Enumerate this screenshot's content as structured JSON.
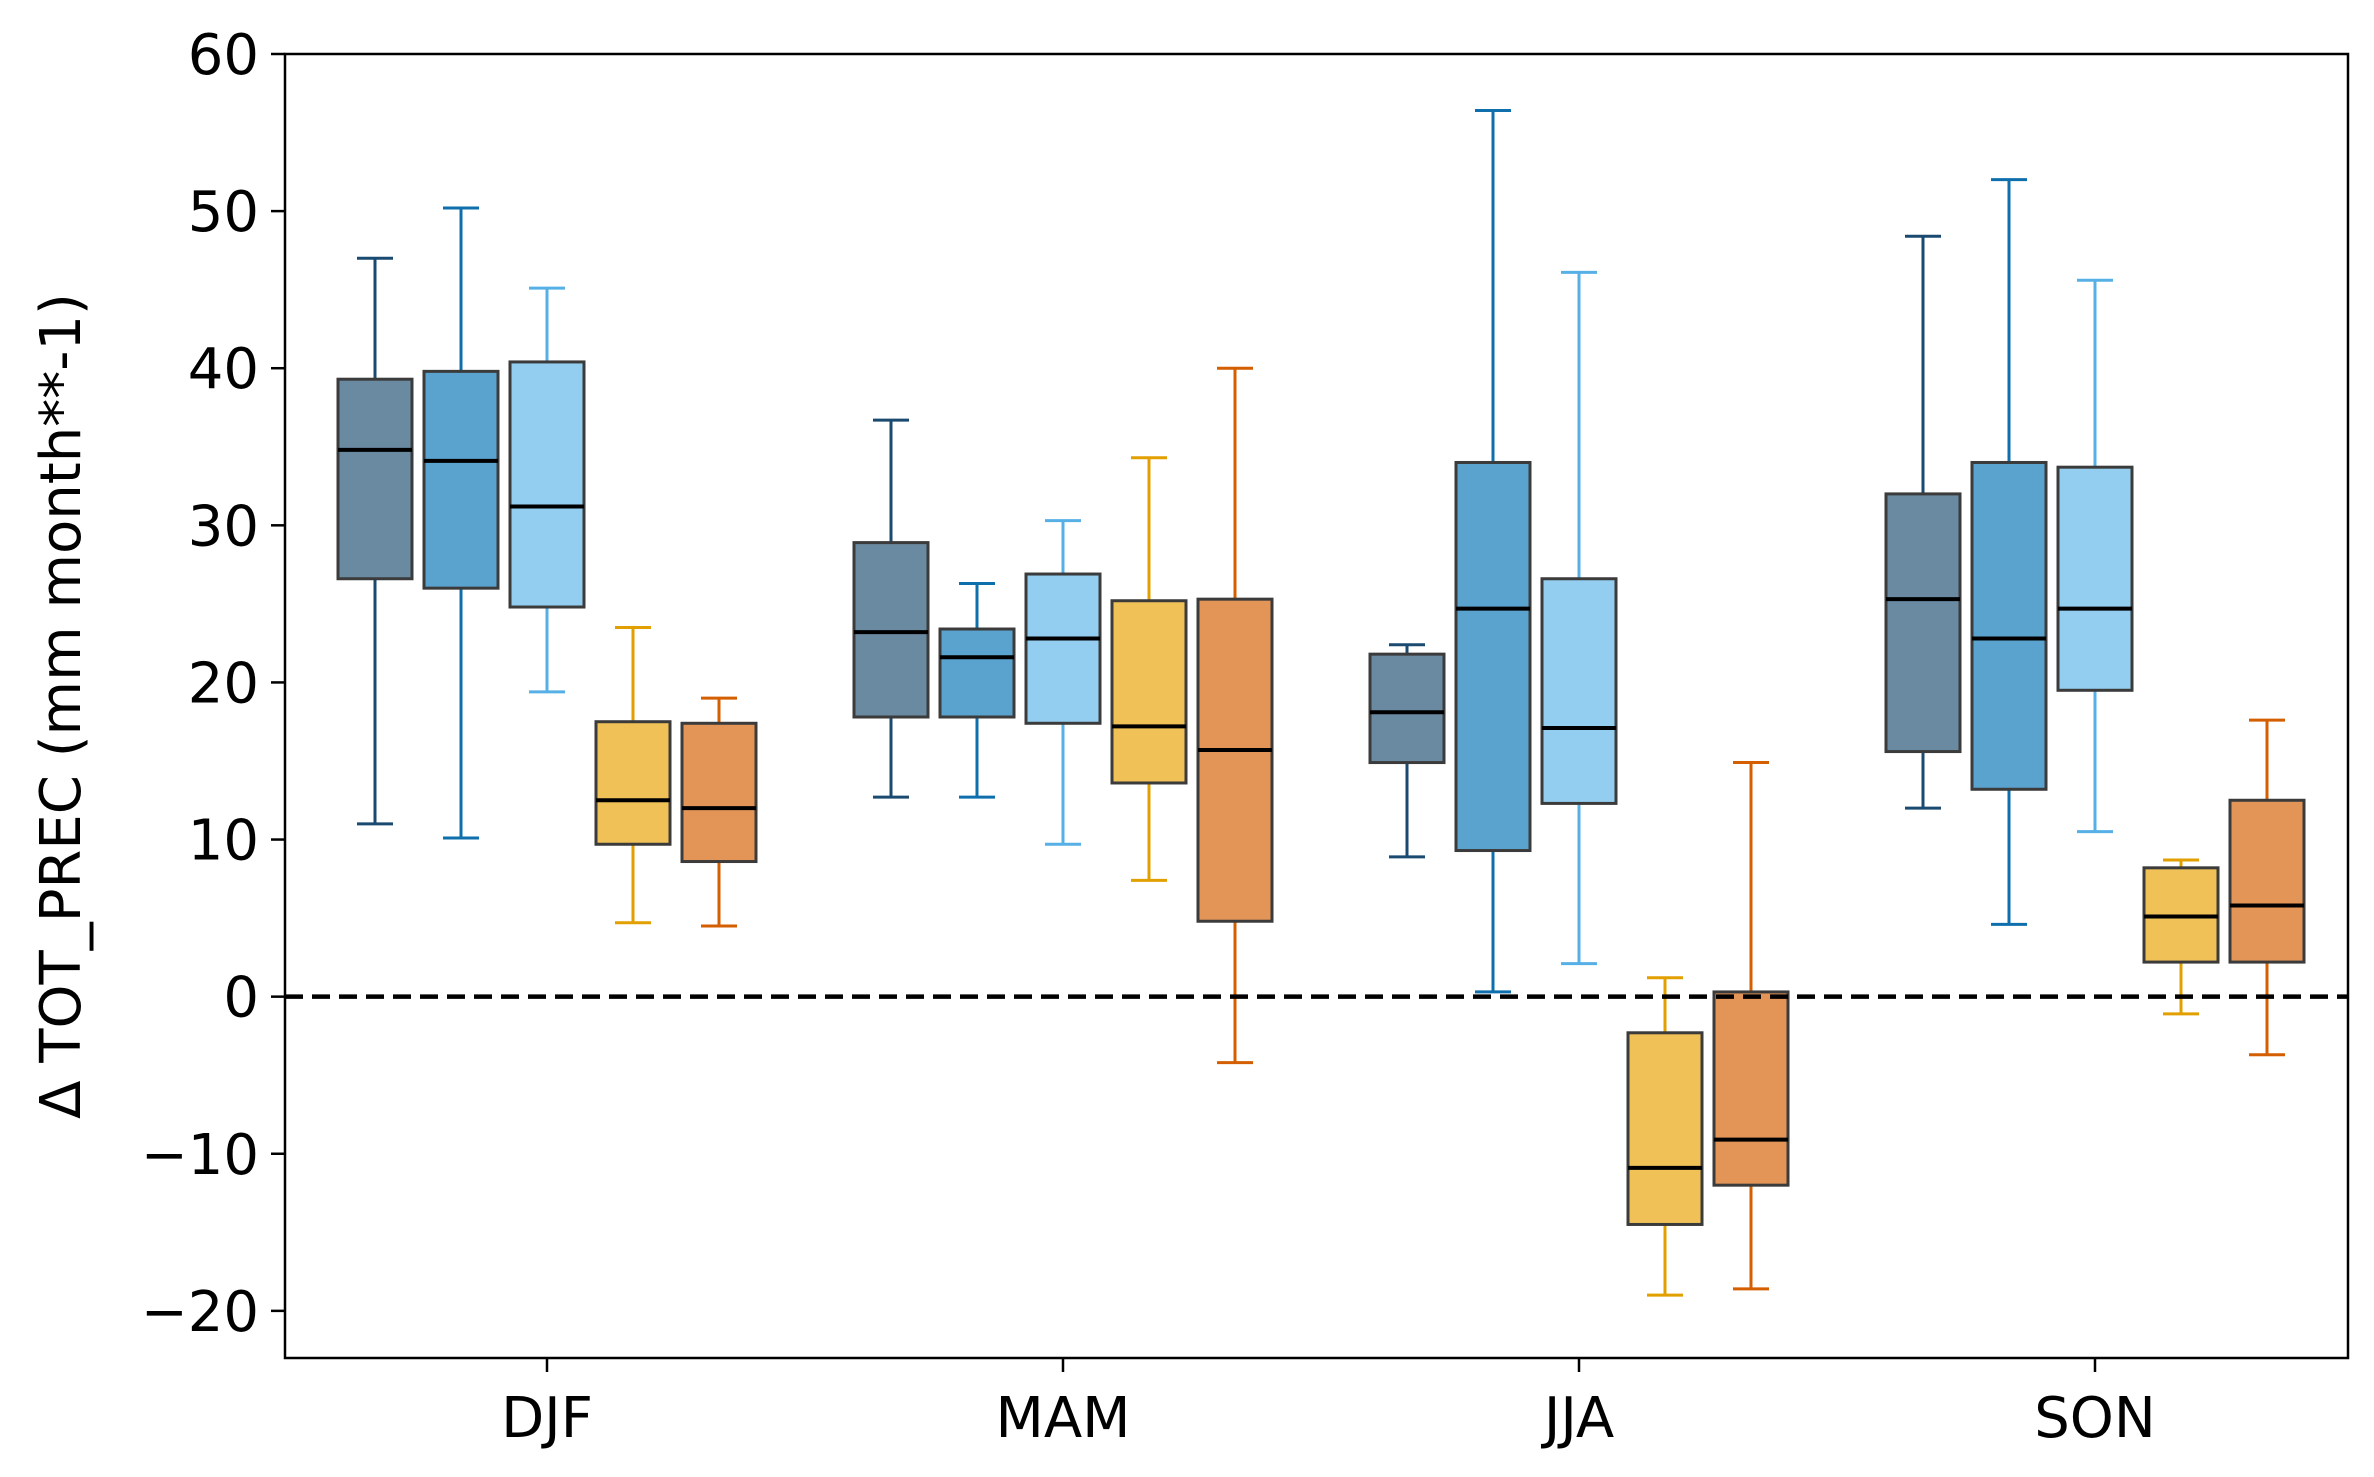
{
  "chart_data": {
    "type": "boxplot",
    "title": "",
    "xlabel": "",
    "ylabel": "Δ TOT_PREC (mm month**-1)",
    "ylim": [
      -23,
      60
    ],
    "yticks": [
      -20,
      -10,
      0,
      10,
      20,
      30,
      40,
      50,
      60
    ],
    "ytick_labels": [
      "−20",
      "−10",
      "0",
      "10",
      "20",
      "30",
      "40",
      "50",
      "60"
    ],
    "categories": [
      "DJF",
      "MAM",
      "JJA",
      "SON"
    ],
    "reference_line": 0,
    "series": [
      {
        "name": "series-1",
        "fill": "#6a8aa2",
        "whisker_color": "#1b4a70",
        "boxes": [
          {
            "whislo": 11.0,
            "q1": 26.6,
            "med": 34.8,
            "q3": 39.3,
            "whishi": 47.0
          },
          {
            "whislo": 12.7,
            "q1": 17.8,
            "med": 23.2,
            "q3": 28.9,
            "whishi": 36.7
          },
          {
            "whislo": 8.9,
            "q1": 14.9,
            "med": 18.1,
            "q3": 21.8,
            "whishi": 22.4
          },
          {
            "whislo": 12.0,
            "q1": 15.6,
            "med": 25.3,
            "q3": 32.0,
            "whishi": 48.4
          }
        ]
      },
      {
        "name": "series-2",
        "fill": "#5ba3cf",
        "whisker_color": "#0f6fad",
        "boxes": [
          {
            "whislo": 10.1,
            "q1": 26.0,
            "med": 34.1,
            "q3": 39.8,
            "whishi": 50.2
          },
          {
            "whislo": 12.7,
            "q1": 17.8,
            "med": 21.6,
            "q3": 23.4,
            "whishi": 26.3
          },
          {
            "whislo": 0.3,
            "q1": 9.3,
            "med": 24.7,
            "q3": 34.0,
            "whishi": 56.4
          },
          {
            "whislo": 4.6,
            "q1": 13.2,
            "med": 22.8,
            "q3": 34.0,
            "whishi": 52.0
          }
        ]
      },
      {
        "name": "series-3",
        "fill": "#93cdef",
        "whisker_color": "#56b0e6",
        "boxes": [
          {
            "whislo": 19.4,
            "q1": 24.8,
            "med": 31.2,
            "q3": 40.4,
            "whishi": 45.1
          },
          {
            "whislo": 9.7,
            "q1": 17.4,
            "med": 22.8,
            "q3": 26.9,
            "whishi": 30.3
          },
          {
            "whislo": 2.1,
            "q1": 12.3,
            "med": 17.1,
            "q3": 26.6,
            "whishi": 46.1
          },
          {
            "whislo": 10.5,
            "q1": 19.5,
            "med": 24.7,
            "q3": 33.7,
            "whishi": 45.6
          }
        ]
      },
      {
        "name": "series-4",
        "fill": "#efc157",
        "whisker_color": "#e29f00",
        "boxes": [
          {
            "whislo": 4.7,
            "q1": 9.7,
            "med": 12.5,
            "q3": 17.5,
            "whishi": 23.5
          },
          {
            "whislo": 7.4,
            "q1": 13.6,
            "med": 17.2,
            "q3": 25.2,
            "whishi": 34.3
          },
          {
            "whislo": -19.0,
            "q1": -14.5,
            "med": -10.9,
            "q3": -2.3,
            "whishi": 1.2
          },
          {
            "whislo": -1.1,
            "q1": 2.2,
            "med": 5.1,
            "q3": 8.2,
            "whishi": 8.7
          }
        ]
      },
      {
        "name": "series-5",
        "fill": "#e39558",
        "whisker_color": "#d45f00",
        "boxes": [
          {
            "whislo": 4.5,
            "q1": 8.6,
            "med": 12.0,
            "q3": 17.4,
            "whishi": 19.0
          },
          {
            "whislo": -4.2,
            "q1": 4.8,
            "med": 15.7,
            "q3": 25.3,
            "whishi": 40.0
          },
          {
            "whislo": -18.6,
            "q1": -12.0,
            "med": -9.1,
            "q3": 0.3,
            "whishi": 14.9
          },
          {
            "whislo": -3.7,
            "q1": 2.2,
            "med": 5.8,
            "q3": 12.5,
            "whishi": 17.6
          }
        ]
      }
    ]
  }
}
